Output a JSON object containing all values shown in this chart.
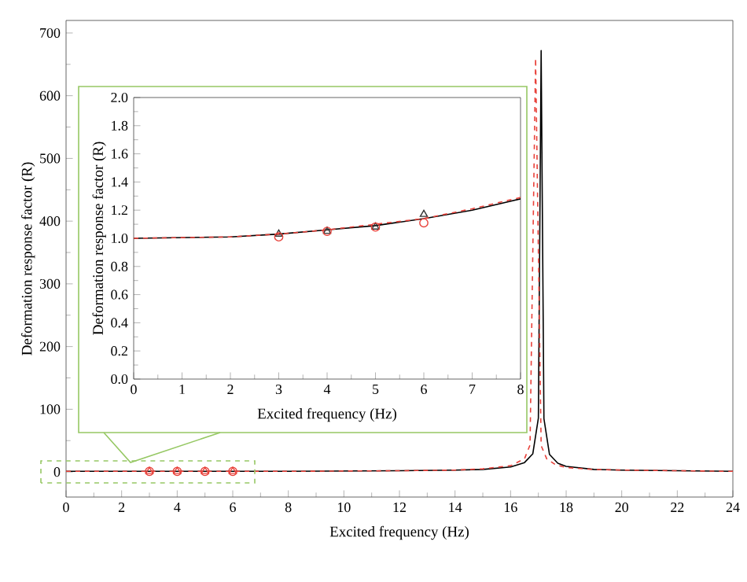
{
  "chart_data": [
    {
      "type": "line",
      "xlabel": "Excited frequency (Hz)",
      "ylabel": "Deformation response factor (R)",
      "xlim": [
        0,
        24
      ],
      "ylim": [
        -40,
        720
      ],
      "xticks": [
        0,
        2,
        4,
        6,
        8,
        10,
        12,
        14,
        16,
        18,
        20,
        22,
        24
      ],
      "yticks": [
        0,
        100,
        200,
        300,
        400,
        500,
        600,
        700
      ],
      "series": [
        {
          "color": "#000000",
          "line_style": "solid",
          "x": [
            0,
            8,
            12,
            14,
            15,
            16,
            16.5,
            16.8,
            17.0,
            17.1,
            17.2,
            17.4,
            17.7,
            18,
            19,
            20,
            24
          ],
          "values": [
            1,
            1,
            2,
            3,
            4,
            8,
            15,
            29,
            86,
            672,
            85,
            28,
            14,
            9,
            4,
            3,
            1
          ]
        },
        {
          "color": "#e8413a",
          "line_style": "dashed",
          "x": [
            0,
            8,
            12,
            14,
            15,
            16,
            16.5,
            16.7,
            16.9,
            17.1,
            17.3,
            17.6,
            18,
            19,
            20,
            24
          ],
          "values": [
            1,
            1,
            2,
            3,
            5,
            10,
            21,
            43,
            660,
            42,
            21,
            12,
            7,
            4,
            3,
            1
          ]
        },
        {
          "type": "scatter",
          "marker": "triangle",
          "color": "#e8413a",
          "x": [
            3,
            4,
            5,
            6
          ],
          "values": [
            1,
            1,
            1,
            1
          ]
        },
        {
          "type": "scatter",
          "marker": "circle",
          "color": "#e8413a",
          "x": [
            3,
            4,
            5,
            6
          ],
          "values": [
            1,
            1,
            1,
            1
          ]
        }
      ]
    },
    {
      "type": "line",
      "xlabel": "Excited frequency (Hz)",
      "ylabel": "Deformation response factor (R)",
      "xlim": [
        0,
        8
      ],
      "ylim": [
        0,
        2.0
      ],
      "xticks": [
        0,
        1,
        2,
        3,
        4,
        5,
        6,
        7,
        8
      ],
      "yticks": [
        {
          "value": 0,
          "label": "0.0"
        },
        {
          "value": 0.2,
          "label": "0.2"
        },
        {
          "value": 0.4,
          "label": "0.4"
        },
        {
          "value": 0.6,
          "label": "0.6"
        },
        {
          "value": 0.8,
          "label": "0.8"
        },
        {
          "value": 1.0,
          "label": "1.0"
        },
        {
          "value": 1.2,
          "label": "1.2"
        },
        {
          "value": 1.4,
          "label": "1.4"
        },
        {
          "value": 1.6,
          "label": "1.6"
        },
        {
          "value": 1.8,
          "label": "1.8"
        },
        {
          "value": 2.0,
          "label": "2.0"
        }
      ],
      "series": [
        {
          "color": "#000000",
          "line_style": "solid",
          "x": [
            0,
            2,
            3,
            4,
            5,
            6,
            7,
            8
          ],
          "values": [
            1.0,
            1.01,
            1.03,
            1.06,
            1.09,
            1.14,
            1.2,
            1.28
          ]
        },
        {
          "color": "#e8413a",
          "line_style": "dashed",
          "x": [
            0,
            2,
            3,
            4,
            5,
            6,
            7,
            8
          ],
          "values": [
            1.0,
            1.01,
            1.03,
            1.06,
            1.1,
            1.14,
            1.21,
            1.29
          ]
        },
        {
          "type": "scatter",
          "marker": "triangle",
          "color": "#333333",
          "x": [
            3,
            4,
            5,
            6
          ],
          "values": [
            1.03,
            1.05,
            1.08,
            1.17
          ]
        },
        {
          "type": "scatter",
          "marker": "circle",
          "color": "#e8413a",
          "x": [
            3,
            4,
            5,
            6
          ],
          "values": [
            1.01,
            1.05,
            1.08,
            1.11
          ]
        }
      ]
    }
  ]
}
